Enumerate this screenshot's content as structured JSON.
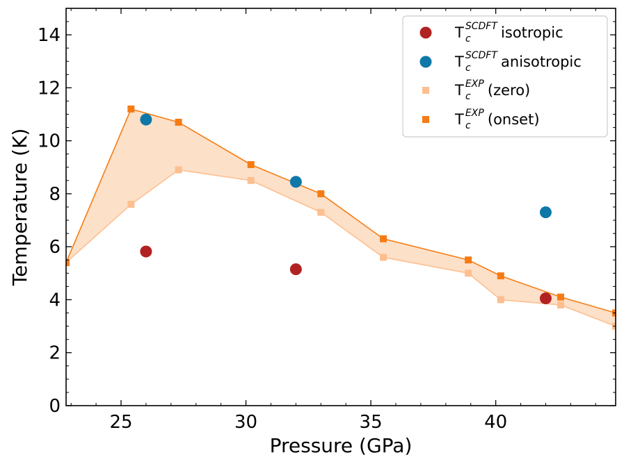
{
  "chart_data": {
    "type": "scatter",
    "xlabel": "Pressure (GPa)",
    "ylabel": "Temperature (K)",
    "xlim": [
      22.8,
      44.8
    ],
    "ylim": [
      0,
      15
    ],
    "xticks": [
      25,
      30,
      35,
      40
    ],
    "yticks": [
      0,
      2,
      4,
      6,
      8,
      10,
      12,
      14
    ],
    "xtick_labels": [
      "25",
      "30",
      "35",
      "40"
    ],
    "ytick_labels": [
      "0",
      "2",
      "4",
      "6",
      "8",
      "10",
      "12",
      "14"
    ],
    "legend_position": "top-right",
    "fill_between": {
      "lower": "Tc EXP (zero)",
      "upper": "Tc EXP (onset)",
      "color": "#fde0c8"
    },
    "series": [
      {
        "name": "Tc SCDFT isotropic",
        "base": "T",
        "sub": "c",
        "sup": "SCDFT",
        "suffix": "isotropic",
        "marker": "circle",
        "color": "#b22222",
        "x": [
          26.0,
          32.0,
          42.0
        ],
        "y": [
          5.82,
          5.15,
          4.05
        ]
      },
      {
        "name": "Tc SCDFT anisotropic",
        "base": "T",
        "sub": "c",
        "sup": "SCDFT",
        "suffix": "anisotropic",
        "marker": "circle",
        "color": "#0e78a8",
        "x": [
          26.0,
          32.0,
          42.0
        ],
        "y": [
          10.8,
          8.45,
          7.3
        ]
      },
      {
        "name": "Tc EXP (zero)",
        "base": "T",
        "sub": "c",
        "sup": "EXP",
        "suffix": "(zero)",
        "marker": "square",
        "color": "#fdbf8f",
        "line": true,
        "x": [
          22.8,
          25.4,
          27.3,
          30.2,
          33.0,
          35.5,
          38.9,
          40.2,
          42.6,
          44.8
        ],
        "y": [
          5.4,
          7.6,
          8.9,
          8.5,
          7.3,
          5.6,
          5.0,
          4.0,
          3.8,
          3.0
        ]
      },
      {
        "name": "Tc EXP (onset)",
        "base": "T",
        "sub": "c",
        "sup": "EXP",
        "suffix": "(onset)",
        "marker": "square",
        "color": "#f57c14",
        "line": true,
        "x": [
          22.8,
          25.4,
          27.3,
          30.2,
          33.0,
          35.5,
          38.9,
          40.2,
          42.6,
          44.8
        ],
        "y": [
          5.4,
          11.2,
          10.7,
          9.1,
          8.0,
          6.3,
          5.5,
          4.9,
          4.1,
          3.5
        ]
      }
    ]
  }
}
